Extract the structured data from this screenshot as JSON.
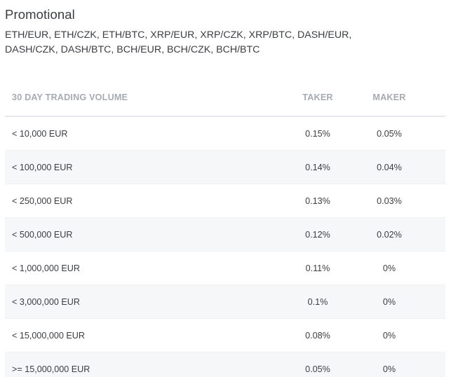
{
  "section": {
    "title": "Promotional",
    "pairs": "ETH/EUR, ETH/CZK, ETH/BTC, XRP/EUR, XRP/CZK, XRP/BTC, DASH/EUR, DASH/CZK, DASH/BTC, BCH/EUR, BCH/CZK, BCH/BTC"
  },
  "table": {
    "headers": {
      "volume": "30 DAY TRADING VOLUME",
      "taker": "TAKER",
      "maker": "MAKER"
    },
    "rows": [
      {
        "volume": "< 10,000 EUR",
        "taker": "0.15%",
        "maker": "0.05%"
      },
      {
        "volume": "< 100,000 EUR",
        "taker": "0.14%",
        "maker": "0.04%"
      },
      {
        "volume": "< 250,000 EUR",
        "taker": "0.13%",
        "maker": "0.03%"
      },
      {
        "volume": "< 500,000 EUR",
        "taker": "0.12%",
        "maker": "0.02%"
      },
      {
        "volume": "< 1,000,000 EUR",
        "taker": "0.11%",
        "maker": "0%"
      },
      {
        "volume": "< 3,000,000 EUR",
        "taker": "0.1%",
        "maker": "0%"
      },
      {
        "volume": "< 15,000,000 EUR",
        "taker": "0.08%",
        "maker": "0%"
      },
      {
        "volume": ">= 15,000,000 EUR",
        "taker": "0.05%",
        "maker": "0%"
      }
    ]
  }
}
